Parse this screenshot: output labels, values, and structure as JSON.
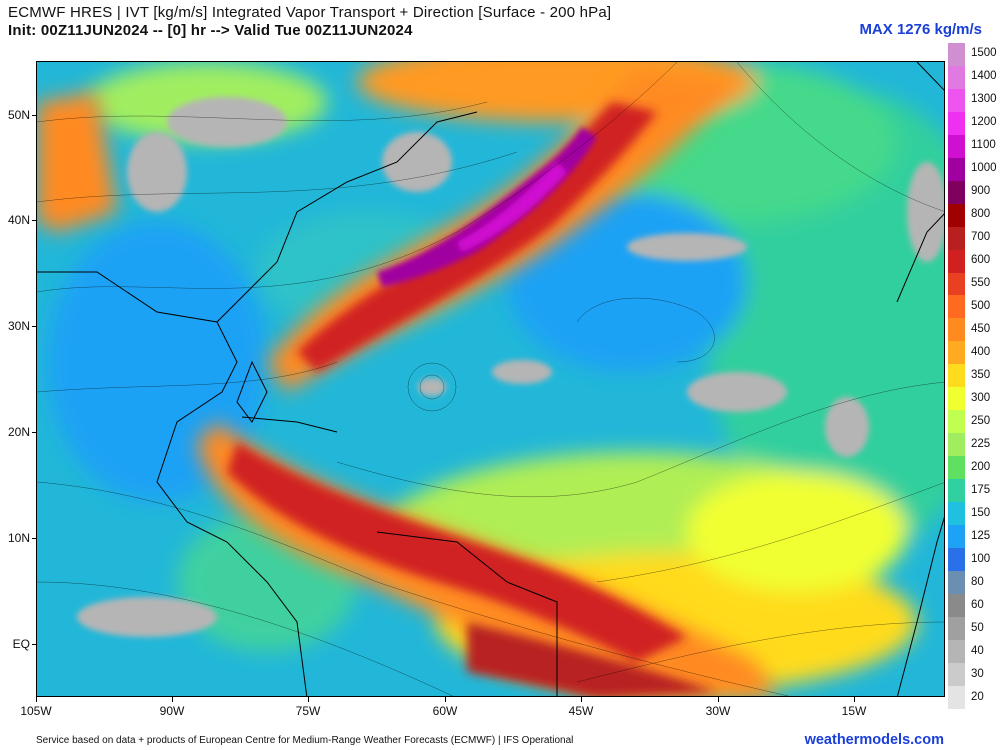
{
  "header": {
    "line1": "ECMWF HRES | IVT [kg/m/s] Integrated Vapor Transport + Direction [Surface - 200 hPa]",
    "line2": "Init: 00Z11JUN2024 -- [0] hr --> Valid Tue 00Z11JUN2024",
    "max_label": "MAX 1276 kg/m/s"
  },
  "map": {
    "lat_labels": [
      "50N",
      "40N",
      "30N",
      "20N",
      "10N",
      "EQ"
    ],
    "lon_labels": [
      "105W",
      "90W",
      "75W",
      "60W",
      "45W",
      "30W",
      "15W"
    ],
    "features": [
      "plume-tropical-atlantic",
      "plume-mid-atlantic",
      "plume-gulf-of-mexico",
      "plume-northwest-us"
    ]
  },
  "colorbar": {
    "labels": [
      "1500",
      "1400",
      "1300",
      "1200",
      "1100",
      "1000",
      "900",
      "800",
      "700",
      "600",
      "550",
      "500",
      "450",
      "400",
      "350",
      "300",
      "250",
      "225",
      "200",
      "175",
      "150",
      "125",
      "100",
      "80",
      "60",
      "50",
      "40",
      "30",
      "20"
    ],
    "colors": [
      "#cf8fd0",
      "#e07ae0",
      "#ee55ee",
      "#f030f0",
      "#d010d0",
      "#a000a0",
      "#800060",
      "#a00000",
      "#b82020",
      "#d02020",
      "#e84020",
      "#ff6a20",
      "#ff8a20",
      "#ffaa20",
      "#ffdb1e",
      "#f0ff30",
      "#c0ff50",
      "#a0ee60",
      "#60e060",
      "#30d0a0",
      "#20c0e0",
      "#1ea2f5",
      "#2a70e8",
      "#6a8fb0",
      "#8a8a8a",
      "#a0a0a0",
      "#b5b5b5",
      "#cbcbcb",
      "#e4e4e4"
    ]
  },
  "footer": {
    "source": "Service based on data + products of European Centre for Medium-Range Weather Forecasts (ECMWF) | IFS Operational",
    "brand": "weathermodels.com"
  }
}
